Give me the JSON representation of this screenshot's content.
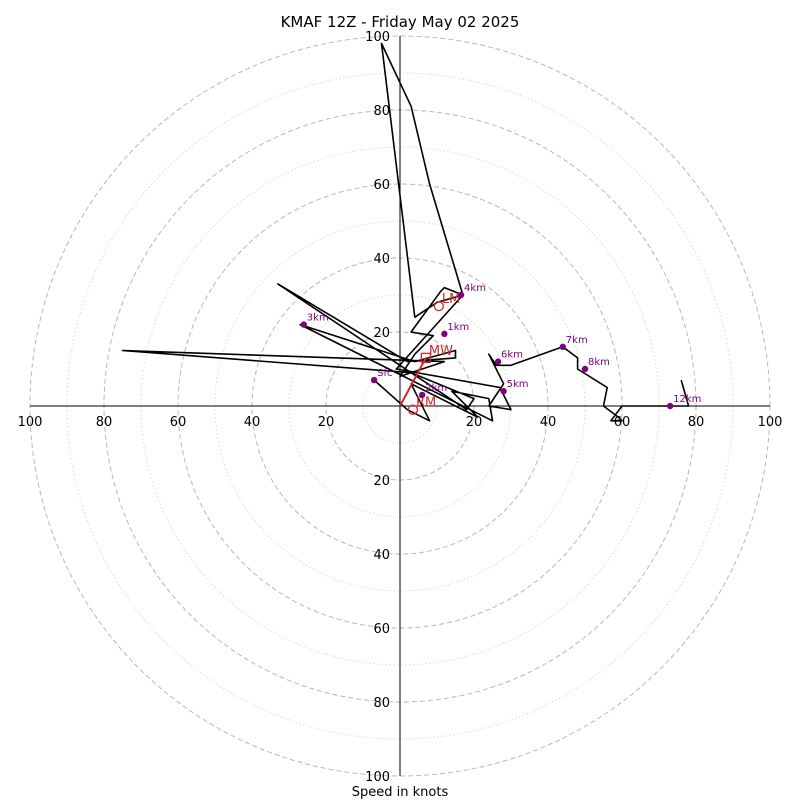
{
  "chart_data": {
    "type": "hodograph",
    "title": "KMAF 12Z - Friday May 02 2025",
    "xlabel": "Speed in knots",
    "max_speed": 100,
    "ring_step": 20,
    "tick_labels": [
      "20",
      "40",
      "60",
      "80",
      "100"
    ],
    "colors": {
      "trace": "#000000",
      "heights": "#800080",
      "motion": "#d62728",
      "grid": "#b0b0b0"
    },
    "hodograph": {
      "u": [
        -7,
        2,
        8,
        3,
        21,
        14,
        24,
        25,
        -27,
        4,
        15,
        15,
        2,
        -33,
        18,
        20,
        3,
        -75,
        12,
        0,
        4,
        9,
        3,
        11,
        12,
        17,
        10,
        4,
        -5,
        3,
        8,
        17,
        -1,
        27,
        30,
        24,
        28,
        24,
        26,
        30,
        44,
        48,
        48,
        56,
        55,
        55,
        59,
        60,
        59,
        57,
        60,
        73,
        78,
        76
      ],
      "v": [
        7,
        -1,
        -4,
        6,
        -3,
        4,
        2,
        -4,
        22,
        12,
        15,
        13,
        12,
        33,
        -1,
        2,
        9,
        15,
        12,
        8,
        14,
        19,
        20,
        31,
        32,
        30,
        28,
        24,
        98,
        81,
        60,
        30,
        10,
        5,
        -1,
        0,
        6,
        14,
        11,
        11,
        16,
        13,
        10,
        5,
        0,
        0,
        -3,
        -4,
        -4,
        -4,
        0,
        0,
        0,
        7
      ]
    },
    "height_markers": [
      {
        "label": "Sfc",
        "u": -7,
        "v": 7
      },
      {
        "label": "1km",
        "u": 12,
        "v": 19.5
      },
      {
        "label": "2km",
        "u": 6,
        "v": 3
      },
      {
        "label": "3km",
        "u": -26,
        "v": 22
      },
      {
        "label": "4km",
        "u": 16.5,
        "v": 30
      },
      {
        "label": "5km",
        "u": 28,
        "v": 4
      },
      {
        "label": "6km",
        "u": 26.5,
        "v": 12
      },
      {
        "label": "7km",
        "u": 44,
        "v": 16
      },
      {
        "label": "8km",
        "u": 50,
        "v": 10
      },
      {
        "label": "12km",
        "u": 73,
        "v": 0
      }
    ],
    "motion_markers": [
      {
        "label": "LM",
        "u": 10.5,
        "v": 27,
        "shape": "circle"
      },
      {
        "label": "MW",
        "u": 7,
        "v": 13,
        "shape": "square"
      },
      {
        "label": "RM",
        "u": 3.5,
        "v": -1,
        "shape": "circle"
      }
    ],
    "mean_shear_vector": {
      "from_u": 0,
      "from_v": 0,
      "to_u": 7,
      "to_v": 13
    }
  }
}
